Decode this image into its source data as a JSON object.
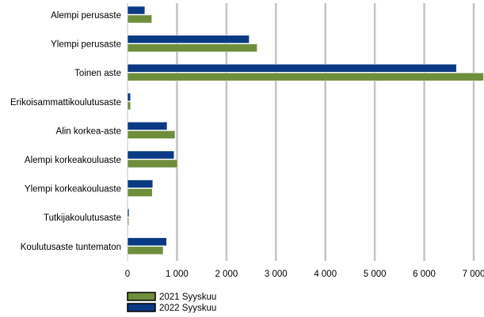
{
  "chart_data": {
    "type": "bar",
    "orientation": "horizontal",
    "categories": [
      "Alempi perusaste",
      "Ylempi perusaste",
      "Toinen aste",
      "Erikoisammattikoulutusaste",
      "Alin korkea-aste",
      "Alempi korkeakouluaste",
      "Ylempi korkeakouluaste",
      "Tutkijakoulutusaste",
      "Koulutusaste tuntematon"
    ],
    "series": [
      {
        "name": "2022 Syyskuu",
        "color": "#0b3a84",
        "values": [
          350,
          2460,
          6650,
          60,
          800,
          940,
          510,
          30,
          790
        ]
      },
      {
        "name": "2021 Syyskuu",
        "color": "#6f8e3c",
        "values": [
          490,
          2620,
          7200,
          60,
          960,
          1010,
          500,
          25,
          720
        ]
      }
    ],
    "xlim": [
      0,
      7000
    ],
    "x_ticks": [
      0,
      1000,
      2000,
      3000,
      4000,
      5000,
      6000,
      7000
    ],
    "x_tick_labels": [
      "0",
      "1 000",
      "2 000",
      "3 000",
      "4 000",
      "5 000",
      "6 000",
      "7 000"
    ],
    "grid": "vertical",
    "legend": {
      "placement": "bottom-left",
      "entries": [
        {
          "label": "2021 Syyskuu",
          "color": "#6f8e3c"
        },
        {
          "label": "2022 Syyskuu",
          "color": "#0b3a84"
        }
      ]
    },
    "title": "",
    "xlabel": "",
    "ylabel": ""
  }
}
